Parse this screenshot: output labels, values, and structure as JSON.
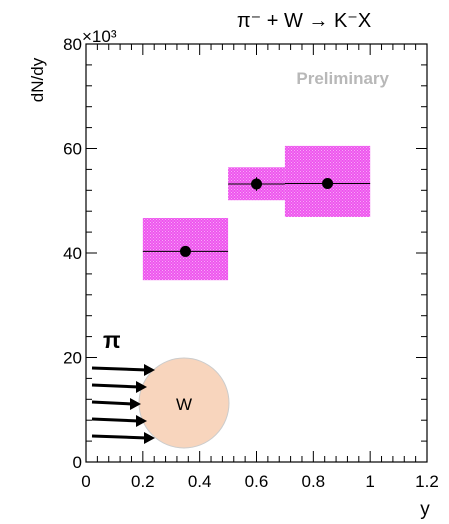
{
  "chart_data": {
    "type": "scatter",
    "title": "π⁻ + W → K⁻X",
    "xlabel": "y",
    "ylabel": "dN/dy",
    "y_multiplier_label": "×10³",
    "watermark": "Preliminary",
    "xlim": [
      0,
      1.2
    ],
    "ylim": [
      0,
      80
    ],
    "x_ticks": [
      0,
      0.2,
      0.4,
      0.6,
      0.8,
      1,
      1.2
    ],
    "x_tick_labels": [
      "0",
      "0.2",
      "0.4",
      "0.6",
      "0.8",
      "1",
      "1.2"
    ],
    "y_ticks": [
      0,
      20,
      40,
      60,
      80
    ],
    "y_tick_labels": [
      "0",
      "20",
      "40",
      "60",
      "80"
    ],
    "grid": false,
    "series": [
      {
        "marker": "filled-circle",
        "color": "#000000",
        "points": [
          {
            "x": 0.35,
            "y": 40.3,
            "x_low": 0.2,
            "x_high": 0.5,
            "stat_err": 0.6,
            "sys_low": 34.8,
            "sys_high": 46.7
          },
          {
            "x": 0.6,
            "y": 53.2,
            "x_low": 0.5,
            "x_high": 0.7,
            "stat_err": 1.3,
            "sys_low": 50.1,
            "sys_high": 56.4
          },
          {
            "x": 0.85,
            "y": 53.3,
            "x_low": 0.7,
            "x_high": 1.0,
            "stat_err": 1.0,
            "sys_low": 46.9,
            "sys_high": 60.5
          }
        ]
      }
    ],
    "systematic_box_color": "#ee55ee",
    "inset": {
      "beam_label": "π",
      "target_label": "W",
      "target_color": "#f8d5bd",
      "arrow_count": 5
    }
  }
}
